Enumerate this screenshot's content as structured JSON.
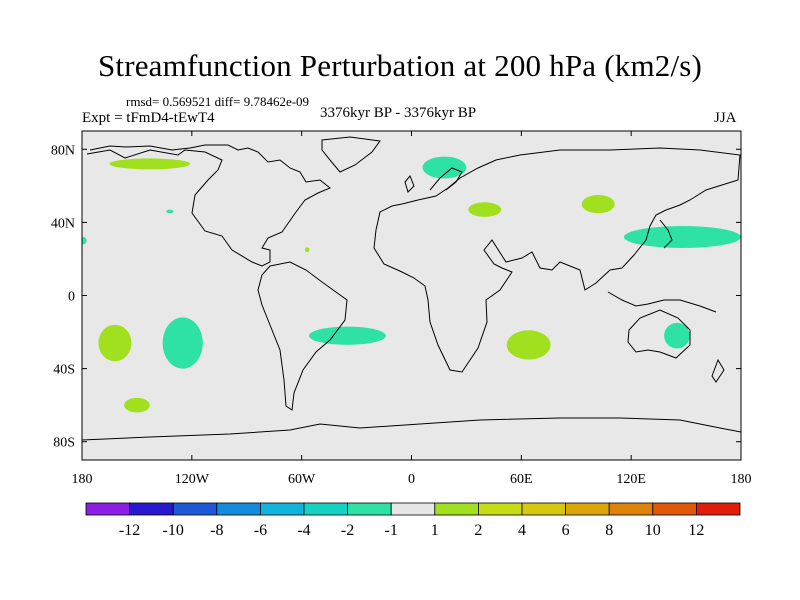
{
  "title": "Streamfunction Perturbation at 200 hPa (km2/s)",
  "stats": "rmsd= 0.569521 diff= 9.78462e-09",
  "experiment": "Expt = tFmD4-tEwT4",
  "period": "3376kyr BP - 3376kyr BP",
  "season": "JJA",
  "chart_data": {
    "type": "heatmap",
    "projection": "cylindrical equidistant",
    "xlim": [
      -180,
      180
    ],
    "ylim": [
      -90,
      90
    ],
    "x_ticks": [
      {
        "value": -180,
        "label": "180"
      },
      {
        "value": -120,
        "label": "120W"
      },
      {
        "value": -60,
        "label": "60W"
      },
      {
        "value": 0,
        "label": "0"
      },
      {
        "value": 60,
        "label": "60E"
      },
      {
        "value": 120,
        "label": "120E"
      },
      {
        "value": 180,
        "label": "180"
      }
    ],
    "y_ticks": [
      {
        "value": 80,
        "label": "80N"
      },
      {
        "value": 40,
        "label": "40N"
      },
      {
        "value": 0,
        "label": "0"
      },
      {
        "value": -40,
        "label": "40S"
      },
      {
        "value": -80,
        "label": "80S"
      }
    ],
    "background_color": "#e8e8e8",
    "colorbar": {
      "colors": [
        "#8c1ee6",
        "#2a18d0",
        "#1e5ad8",
        "#148cde",
        "#12b4dc",
        "#16d2c4",
        "#2ee2a6",
        "#e6e6e6",
        "#a0e01e",
        "#c6dc14",
        "#d6c810",
        "#dca608",
        "#de8208",
        "#e05808",
        "#e21c0a"
      ],
      "labels": [
        "-12",
        "-10",
        "-8",
        "-6",
        "-4",
        "-2",
        "-1",
        "1",
        "2",
        "4",
        "6",
        "8",
        "10",
        "12"
      ]
    },
    "anomaly_regions": [
      {
        "level": "1 to 2",
        "color": "#a0e01e",
        "lon": -143,
        "lat": 72,
        "rx": 22,
        "ry": 3
      },
      {
        "level": "-2 to -1",
        "color": "#2ee2a6",
        "lon": 18,
        "lat": 70,
        "rx": 12,
        "ry": 6
      },
      {
        "level": "1 to 2",
        "color": "#a0e01e",
        "lon": 40,
        "lat": 47,
        "rx": 9,
        "ry": 4
      },
      {
        "level": "1 to 2",
        "color": "#a0e01e",
        "lon": 102,
        "lat": 50,
        "rx": 9,
        "ry": 5
      },
      {
        "level": "-2 to -1",
        "color": "#2ee2a6",
        "lon": 148,
        "lat": 32,
        "rx": 32,
        "ry": 6
      },
      {
        "level": "-2 to -1",
        "color": "#2ee2a6",
        "lon": -132,
        "lat": 46,
        "rx": 2,
        "ry": 1
      },
      {
        "level": "1 to 2",
        "color": "#a0e01e",
        "lon": -57,
        "lat": 25,
        "rx": 1.3,
        "ry": 1.3
      },
      {
        "level": "-2 to -1",
        "color": "#2ee2a6",
        "lon": -179,
        "lat": 30,
        "rx": 1.5,
        "ry": 2
      },
      {
        "level": "1 to 2",
        "color": "#a0e01e",
        "lon": -162,
        "lat": -26,
        "rx": 9,
        "ry": 10
      },
      {
        "level": "-2 to -1",
        "color": "#2ee2a6",
        "lon": -125,
        "lat": -26,
        "rx": 11,
        "ry": 14
      },
      {
        "level": "-2 to -1",
        "color": "#2ee2a6",
        "lon": -35,
        "lat": -22,
        "rx": 21,
        "ry": 5
      },
      {
        "level": "1 to 2",
        "color": "#a0e01e",
        "lon": 64,
        "lat": -27,
        "rx": 12,
        "ry": 8
      },
      {
        "level": "-2 to -1",
        "color": "#2ee2a6",
        "lon": 145,
        "lat": -22,
        "rx": 7,
        "ry": 7
      },
      {
        "level": "1 to 2",
        "color": "#a0e01e",
        "lon": -150,
        "lat": -60,
        "rx": 7,
        "ry": 4
      }
    ]
  }
}
